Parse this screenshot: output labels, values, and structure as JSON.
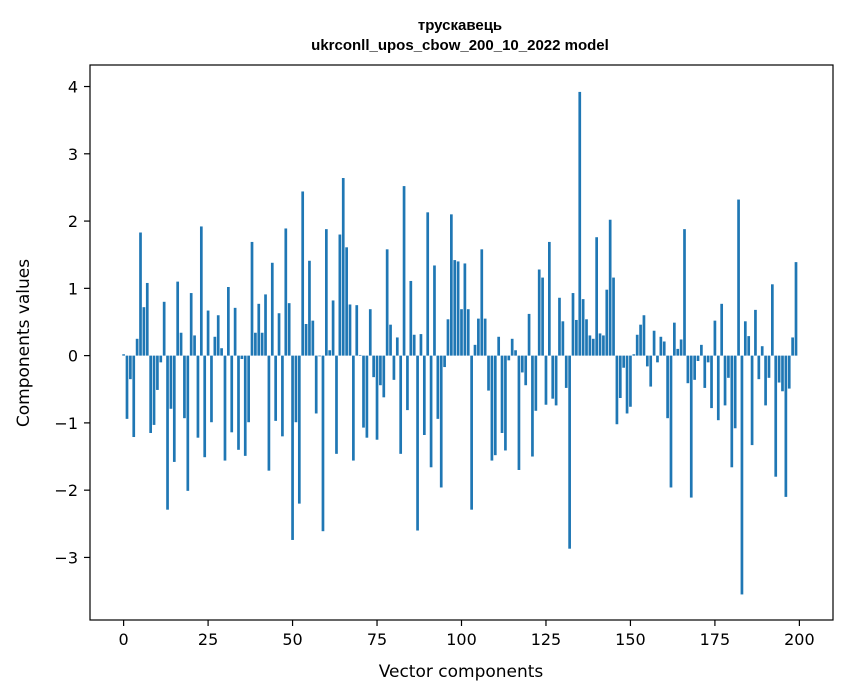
{
  "chart_data": {
    "type": "bar",
    "title_line1": "трускавець",
    "title_line2": "ukrconll_upos_cbow_200_10_2022 model",
    "xlabel": "Vector components",
    "ylabel": "Components values",
    "xlim": [
      -9.95,
      209.95
    ],
    "ylim": [
      -3.93,
      4.32
    ],
    "xticks": [
      0,
      25,
      50,
      75,
      100,
      125,
      150,
      175,
      200
    ],
    "yticks": [
      -3,
      -2,
      -1,
      0,
      1,
      2,
      3,
      4
    ],
    "ytick_labels": [
      "−3",
      "−2",
      "−1",
      "0",
      "1",
      "2",
      "3",
      "4"
    ],
    "bar_color": "#1f77b4",
    "grid": false,
    "legend": "none",
    "x": [
      0,
      1,
      2,
      3,
      4,
      5,
      6,
      7,
      8,
      9,
      10,
      11,
      12,
      13,
      14,
      15,
      16,
      17,
      18,
      19,
      20,
      21,
      22,
      23,
      24,
      25,
      26,
      27,
      28,
      29,
      30,
      31,
      32,
      33,
      34,
      35,
      36,
      37,
      38,
      39,
      40,
      41,
      42,
      43,
      44,
      45,
      46,
      47,
      48,
      49,
      50,
      51,
      52,
      53,
      54,
      55,
      56,
      57,
      58,
      59,
      60,
      61,
      62,
      63,
      64,
      65,
      66,
      67,
      68,
      69,
      70,
      71,
      72,
      73,
      74,
      75,
      76,
      77,
      78,
      79,
      80,
      81,
      82,
      83,
      84,
      85,
      86,
      87,
      88,
      89,
      90,
      91,
      92,
      93,
      94,
      95,
      96,
      97,
      98,
      99,
      100,
      101,
      102,
      103,
      104,
      105,
      106,
      107,
      108,
      109,
      110,
      111,
      112,
      113,
      114,
      115,
      116,
      117,
      118,
      119,
      120,
      121,
      122,
      123,
      124,
      125,
      126,
      127,
      128,
      129,
      130,
      131,
      132,
      133,
      134,
      135,
      136,
      137,
      138,
      139,
      140,
      141,
      142,
      143,
      144,
      145,
      146,
      147,
      148,
      149,
      150,
      151,
      152,
      153,
      154,
      155,
      156,
      157,
      158,
      159,
      160,
      161,
      162,
      163,
      164,
      165,
      166,
      167,
      168,
      169,
      170,
      171,
      172,
      173,
      174,
      175,
      176,
      177,
      178,
      179,
      180,
      181,
      182,
      183,
      184,
      185,
      186,
      187,
      188,
      189,
      190,
      191,
      192,
      193,
      194,
      195,
      196,
      197,
      198,
      199
    ],
    "values": [
      0.02,
      -0.94,
      -0.35,
      -1.21,
      0.25,
      1.83,
      0.72,
      1.08,
      -1.15,
      -1.03,
      -0.51,
      -0.1,
      0.8,
      -2.29,
      -0.79,
      -1.58,
      1.1,
      0.34,
      -0.93,
      -2.01,
      0.93,
      0.3,
      -1.22,
      1.92,
      -1.51,
      0.67,
      -0.99,
      0.28,
      0.6,
      0.11,
      -1.56,
      1.02,
      -1.14,
      0.71,
      -1.4,
      -0.05,
      -1.49,
      -0.99,
      1.69,
      0.34,
      0.77,
      0.34,
      0.91,
      -1.71,
      1.38,
      -0.97,
      0.63,
      -1.2,
      1.89,
      0.78,
      -2.74,
      -0.99,
      -2.2,
      2.44,
      0.47,
      1.41,
      0.52,
      -0.86,
      -0.01,
      -2.61,
      1.88,
      0.08,
      0.82,
      -1.46,
      1.8,
      2.64,
      1.61,
      0.76,
      -1.56,
      0.75,
      0.01,
      -1.07,
      -1.22,
      0.69,
      -0.32,
      -1.25,
      -0.44,
      -0.62,
      1.58,
      0.46,
      -0.36,
      0.27,
      -1.46,
      2.52,
      -0.81,
      1.11,
      0.31,
      -2.6,
      0.32,
      -1.18,
      2.13,
      -1.66,
      1.34,
      -0.94,
      -1.96,
      -0.17,
      0.54,
      2.1,
      1.42,
      1.4,
      0.69,
      1.37,
      0.69,
      -2.29,
      0.16,
      0.55,
      1.58,
      0.55,
      -0.52,
      -1.56,
      -1.48,
      0.28,
      -1.15,
      -1.41,
      -0.07,
      0.25,
      0.08,
      -1.7,
      -0.25,
      -0.44,
      0.62,
      -1.5,
      -0.82,
      1.28,
      1.16,
      -0.73,
      1.69,
      -0.64,
      -0.74,
      0.86,
      0.51,
      -0.48,
      -2.87,
      0.93,
      0.53,
      3.92,
      0.84,
      0.54,
      0.3,
      0.25,
      1.76,
      0.33,
      0.3,
      0.98,
      2.02,
      1.16,
      -1.02,
      -0.63,
      -0.18,
      -0.86,
      -0.76,
      0.02,
      0.31,
      0.46,
      0.6,
      -0.16,
      -0.46,
      0.37,
      -0.1,
      0.28,
      0.21,
      -0.93,
      -1.96,
      0.49,
      0.1,
      0.24,
      1.88,
      -0.41,
      -2.11,
      -0.36,
      -0.08,
      0.16,
      -0.48,
      -0.1,
      -0.78,
      0.52,
      -0.96,
      0.77,
      -0.74,
      -0.33,
      -1.66,
      -1.08,
      2.32,
      -3.55,
      0.51,
      0.29,
      -1.33,
      0.68,
      -0.35,
      0.14,
      -0.74,
      -0.33,
      1.06,
      -1.8,
      -0.4,
      -0.53,
      -2.1,
      -0.49,
      0.27,
      1.39
    ]
  }
}
